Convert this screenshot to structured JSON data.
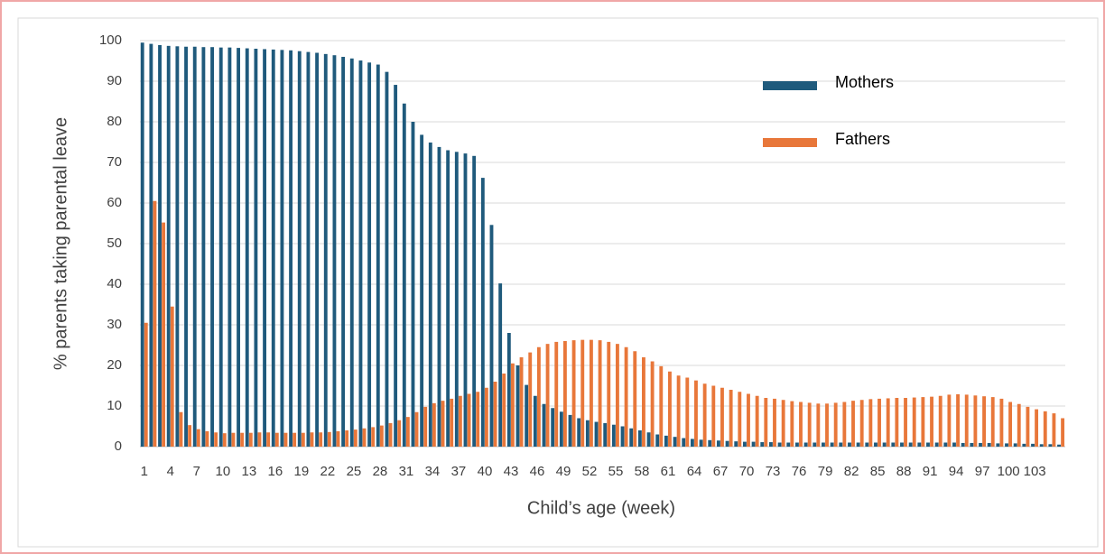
{
  "chart_data": {
    "type": "bar",
    "y_label": "% parents taking parental leave",
    "x_label": "Child’s age (week)",
    "categories": [
      1,
      null,
      null,
      4,
      null,
      null,
      7,
      null,
      null,
      10,
      null,
      null,
      13,
      null,
      null,
      16,
      null,
      null,
      19,
      null,
      null,
      22,
      null,
      null,
      25,
      null,
      null,
      28,
      null,
      null,
      31,
      null,
      null,
      34,
      null,
      null,
      37,
      null,
      null,
      40,
      null,
      null,
      43,
      null,
      null,
      46,
      null,
      null,
      49,
      null,
      null,
      52,
      null,
      null,
      55,
      null,
      null,
      58,
      null,
      null,
      61,
      null,
      null,
      64,
      null,
      null,
      67,
      null,
      null,
      70,
      null,
      null,
      73,
      null,
      null,
      76,
      null,
      null,
      79,
      null,
      null,
      82,
      null,
      null,
      85,
      null,
      null,
      88,
      null,
      null,
      91,
      null,
      null,
      94,
      null,
      null,
      97,
      null,
      null,
      100,
      null,
      null,
      103,
      null,
      null,
      null
    ],
    "series": [
      {
        "name": "Mothers",
        "color": "#1f5a7c",
        "values": [
          99.5,
          99.2,
          98.9,
          98.7,
          98.6,
          98.5,
          98.5,
          98.4,
          98.4,
          98.3,
          98.3,
          98.2,
          98.1,
          98.0,
          97.9,
          97.8,
          97.7,
          97.6,
          97.4,
          97.2,
          97.0,
          96.7,
          96.4,
          96.0,
          95.6,
          95.1,
          94.6,
          94.1,
          92.3,
          89.1,
          84.5,
          80.0,
          76.8,
          74.9,
          73.8,
          73.0,
          72.6,
          72.2,
          71.6,
          66.2,
          54.6,
          40.2,
          28.0,
          20.0,
          15.2,
          12.5,
          10.5,
          9.5,
          8.6,
          7.8,
          7.0,
          6.5,
          6.1,
          5.8,
          5.4,
          5.0,
          4.5,
          4.0,
          3.5,
          3.0,
          2.7,
          2.4,
          2.1,
          1.9,
          1.7,
          1.6,
          1.5,
          1.4,
          1.3,
          1.2,
          1.2,
          1.1,
          1.1,
          1.0,
          1.0,
          1.0,
          1.0,
          1.0,
          1.0,
          1.0,
          1.0,
          1.0,
          1.0,
          1.0,
          1.0,
          1.0,
          1.0,
          1.0,
          1.0,
          1.0,
          1.0,
          1.0,
          1.0,
          1.0,
          0.9,
          0.9,
          0.9,
          0.9,
          0.8,
          0.8,
          0.8,
          0.7,
          0.7,
          0.6,
          0.6,
          0.5
        ]
      },
      {
        "name": "Fathers",
        "color": "#e8773a",
        "values": [
          30.5,
          60.5,
          55.2,
          34.5,
          8.5,
          5.3,
          4.3,
          3.8,
          3.5,
          3.3,
          3.4,
          3.4,
          3.4,
          3.5,
          3.5,
          3.4,
          3.4,
          3.4,
          3.4,
          3.5,
          3.5,
          3.6,
          3.8,
          4.0,
          4.2,
          4.5,
          4.8,
          5.2,
          5.8,
          6.5,
          7.3,
          8.5,
          9.8,
          10.7,
          11.3,
          11.8,
          12.5,
          13.0,
          13.5,
          14.5,
          16.0,
          18.0,
          20.5,
          22.0,
          23.2,
          24.5,
          25.3,
          25.8,
          26.0,
          26.2,
          26.3,
          26.3,
          26.2,
          25.8,
          25.3,
          24.5,
          23.5,
          22.0,
          21.0,
          19.8,
          18.5,
          17.5,
          17.0,
          16.3,
          15.5,
          15.0,
          14.5,
          14.0,
          13.5,
          13.0,
          12.5,
          12.0,
          11.8,
          11.5,
          11.2,
          11.0,
          10.8,
          10.6,
          10.6,
          10.8,
          11.0,
          11.3,
          11.5,
          11.7,
          11.8,
          11.9,
          12.0,
          12.0,
          12.1,
          12.2,
          12.3,
          12.5,
          12.8,
          12.9,
          12.8,
          12.6,
          12.4,
          12.2,
          11.8,
          11.0,
          10.5,
          9.8,
          9.2,
          8.7,
          8.2,
          7.0
        ]
      }
    ],
    "ylim": [
      0,
      100
    ],
    "yticks": [
      0,
      10,
      20,
      30,
      40,
      50,
      60,
      70,
      80,
      90,
      100
    ],
    "grid": true
  }
}
